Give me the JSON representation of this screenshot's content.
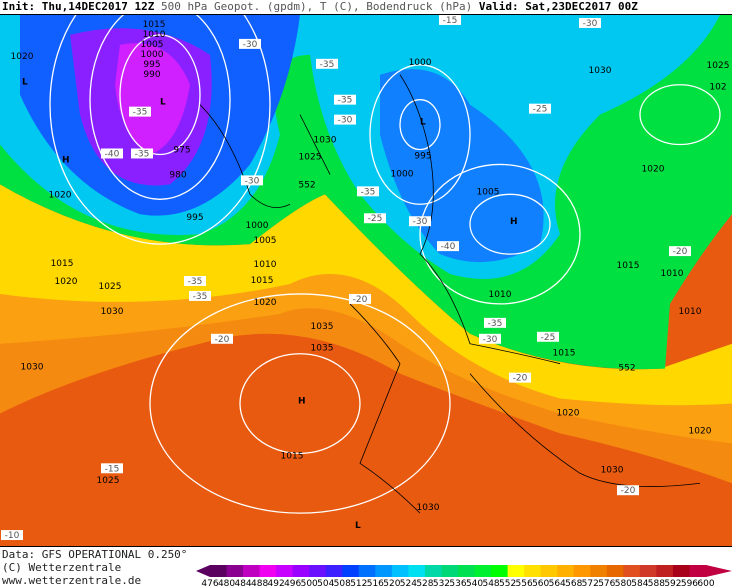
{
  "header": {
    "init_label": "Init:",
    "init_value": "Thu,14DEC2017 12Z",
    "title": "500 hPa Geopot. (gpdm), T (C), Bodendruck (hPa)",
    "valid_label": "Valid:",
    "valid_value": "Sat,23DEC2017 00Z"
  },
  "footer": {
    "data_source": "Data: GFS OPERATIONAL 0.250°",
    "copyright": "(C) Wetterzentrale",
    "url": "www.wetterzentrale.de"
  },
  "legend": {
    "unit": "gpdm",
    "ticks": [
      "476",
      "480",
      "484",
      "488",
      "492",
      "496",
      "500",
      "504",
      "508",
      "512",
      "516",
      "520",
      "524",
      "528",
      "532",
      "536",
      "540",
      "548",
      "552",
      "556",
      "560",
      "564",
      "568",
      "572",
      "576",
      "580",
      "584",
      "588",
      "592",
      "596",
      "600"
    ],
    "colors": [
      "#5a005e",
      "#8a0090",
      "#c000c0",
      "#f000f0",
      "#c800ff",
      "#9a00ff",
      "#6a10ff",
      "#3c20ff",
      "#0040ff",
      "#0070ff",
      "#0098ff",
      "#00c0ff",
      "#00e0f0",
      "#00d8a8",
      "#00d878",
      "#00e050",
      "#00f030",
      "#00ff00",
      "#ffff00",
      "#ffe000",
      "#ffc800",
      "#ffb000",
      "#ff9800",
      "#f08000",
      "#e86800",
      "#e05020",
      "#d03828",
      "#c02020",
      "#a80018",
      "#c00040"
    ]
  },
  "map": {
    "pressure_centers": [
      "L",
      "L",
      "L",
      "H",
      "H",
      "H",
      "L",
      "L"
    ],
    "isobar_labels": [
      "1015",
      "1010",
      "1005",
      "1000",
      "995",
      "990",
      "975",
      "980",
      "995",
      "1020",
      "1020",
      "1015",
      "1020",
      "1025",
      "1030",
      "1030",
      "1035",
      "1035",
      "1025",
      "1030",
      "1000",
      "1005",
      "1010",
      "1015",
      "1020",
      "1025",
      "1030",
      "1000",
      "995",
      "1000",
      "1005",
      "1010",
      "1015",
      "1020",
      "1030",
      "1025",
      "102",
      "1020",
      "1015",
      "1010",
      "1010",
      "1015",
      "1020",
      "1030"
    ],
    "temperature_labels": [
      "-30",
      "-35",
      "-40",
      "-35",
      "-30",
      "-35",
      "-35",
      "-25",
      "-30",
      "-35",
      "-35",
      "-25",
      "-30",
      "-30",
      "-35",
      "-40",
      "-35",
      "-30",
      "-25",
      "-20",
      "-20",
      "-15",
      "-10",
      "-20",
      "-20",
      "-20",
      "-15"
    ],
    "height_labels": [
      "552",
      "552"
    ],
    "colors": {
      "low": "#6a10ff",
      "cold": "#00c0ff",
      "mid": "#00e050",
      "warm": "#ffe000",
      "hot": "#e86800",
      "coast": "#000000",
      "isobar": "#ffffff"
    }
  }
}
